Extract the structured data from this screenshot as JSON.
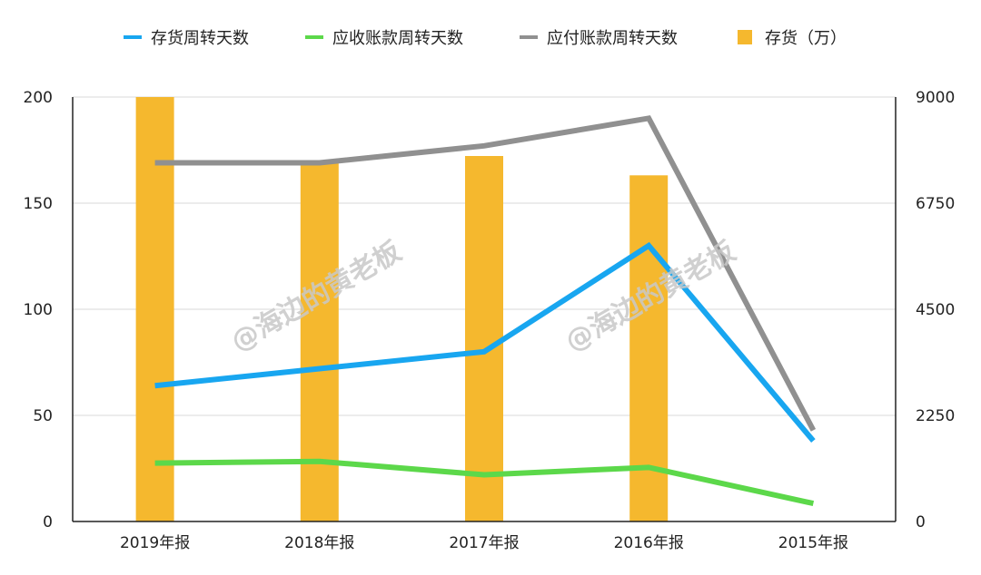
{
  "chart_data": {
    "type": "bar",
    "categories": [
      "2019年报",
      "2018年报",
      "2017年报",
      "2016年报",
      "2015年报"
    ],
    "series": [
      {
        "name": "存货周转天数",
        "kind": "line",
        "axis": "left",
        "color": "#18a6f0",
        "values": [
          64,
          72,
          80,
          130,
          38
        ]
      },
      {
        "name": "应收账款周转天数",
        "kind": "line",
        "axis": "left",
        "color": "#5cd84a",
        "values": [
          27.5,
          28.3,
          22,
          25.5,
          8.5
        ]
      },
      {
        "name": "应付账款周转天数",
        "kind": "line",
        "axis": "left",
        "color": "#909090",
        "values": [
          169,
          169,
          177,
          190,
          43
        ]
      },
      {
        "name": "存货（万）",
        "kind": "bar",
        "axis": "right",
        "color": "#f5b82e",
        "values": [
          9000,
          7600,
          7750,
          7340,
          null
        ]
      }
    ],
    "left_axis": {
      "min": 0,
      "max": 200,
      "ticks": [
        "200",
        "150",
        "100",
        "50",
        "0"
      ]
    },
    "right_axis": {
      "min": 0,
      "max": 9000,
      "ticks": [
        "9000",
        "6750",
        "4500",
        "2250",
        "0"
      ]
    },
    "grid": true,
    "legend_position": "top",
    "watermarks": [
      "@海边的黄老板",
      "@海边的黄老板"
    ]
  }
}
